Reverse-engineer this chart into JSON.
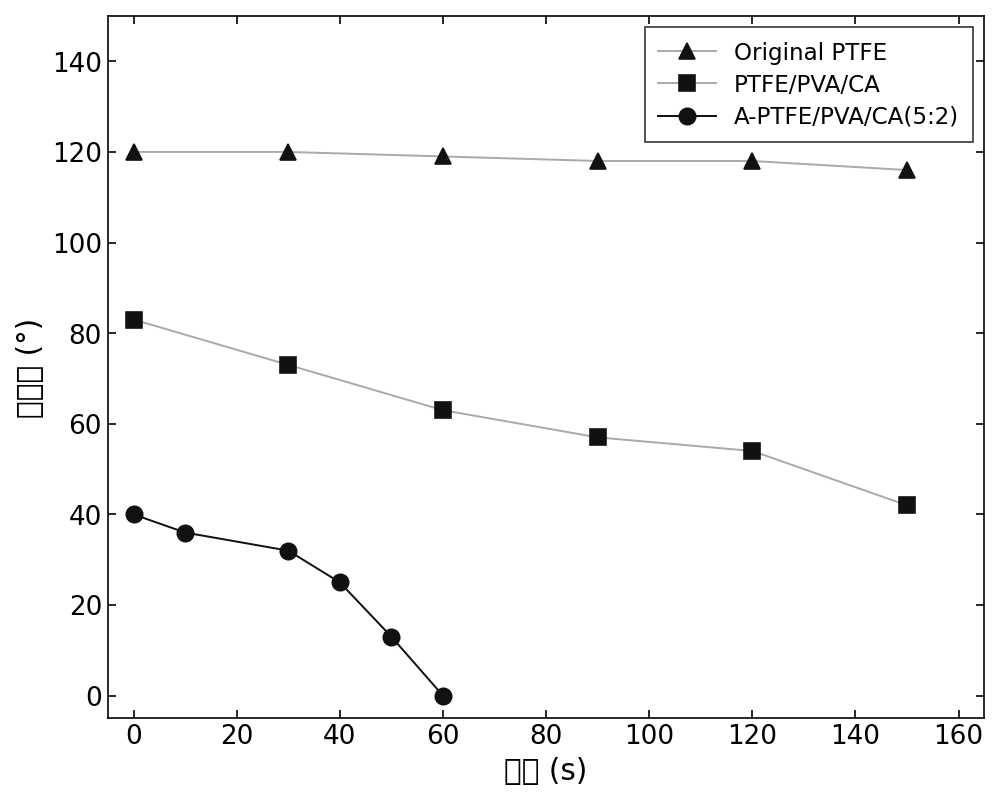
{
  "series": [
    {
      "label": "Original PTFE",
      "x": [
        0,
        30,
        60,
        90,
        120,
        150
      ],
      "y": [
        120,
        120,
        119,
        118,
        118,
        116
      ],
      "marker": "^",
      "line_color": "#aaaaaa",
      "marker_color": "#111111",
      "linewidth": 1.2,
      "markersize": 10
    },
    {
      "label": "PTFE/PVA/CA",
      "x": [
        0,
        30,
        60,
        90,
        120,
        150
      ],
      "y": [
        83,
        73,
        63,
        57,
        54,
        42
      ],
      "marker": "s",
      "line_color": "#aaaaaa",
      "marker_color": "#111111",
      "linewidth": 1.2,
      "markersize": 10
    },
    {
      "label": "A-PTFE/PVA/CA(5:2)",
      "x": [
        0,
        10,
        30,
        40,
        50,
        60
      ],
      "y": [
        40,
        36,
        32,
        25,
        13,
        0
      ],
      "marker": "o",
      "line_color": "#111111",
      "marker_color": "#111111",
      "linewidth": 1.2,
      "markersize": 10
    }
  ],
  "xlabel": "时间 (s)",
  "ylabel": "接触角 (°)",
  "xlim": [
    -5,
    165
  ],
  "ylim": [
    -5,
    150
  ],
  "xticks": [
    0,
    20,
    40,
    60,
    80,
    100,
    120,
    140,
    160
  ],
  "yticks": [
    0,
    20,
    40,
    60,
    80,
    100,
    120,
    140
  ],
  "legend_loc": "upper right",
  "background_color": "#ffffff",
  "label_fontsize": 18,
  "tick_fontsize": 16,
  "legend_fontsize": 14,
  "figwidth": 8.5,
  "figheight": 6.8,
  "dpi": 118
}
